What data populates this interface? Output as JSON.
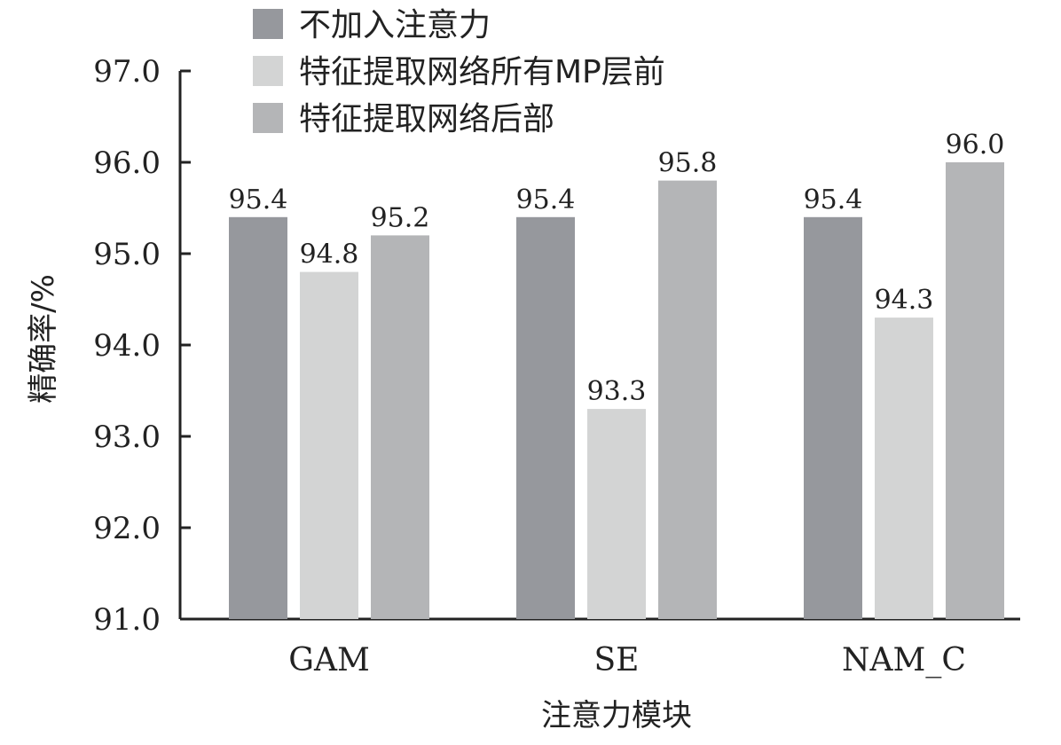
{
  "chart_data": {
    "type": "bar",
    "title": "",
    "xlabel": "注意力模块",
    "ylabel": "精确率/%",
    "categories": [
      "GAM",
      "SE",
      "NAM_C"
    ],
    "ylim": [
      91.0,
      97.0
    ],
    "yticks": [
      "91.0",
      "92.0",
      "93.0",
      "94.0",
      "95.0",
      "96.0",
      "97.0"
    ],
    "grid": false,
    "legend_position": "top-left",
    "series": [
      {
        "name": "不加入注意力",
        "color": "#96989d",
        "values": [
          95.4,
          95.4,
          95.4
        ]
      },
      {
        "name": "特征提取网络所有MP层前",
        "color": "#d3d4d4",
        "values": [
          94.8,
          93.3,
          94.3
        ]
      },
      {
        "name": "特征提取网络后部",
        "color": "#b4b5b7",
        "values": [
          95.2,
          95.8,
          96.0
        ]
      }
    ]
  }
}
